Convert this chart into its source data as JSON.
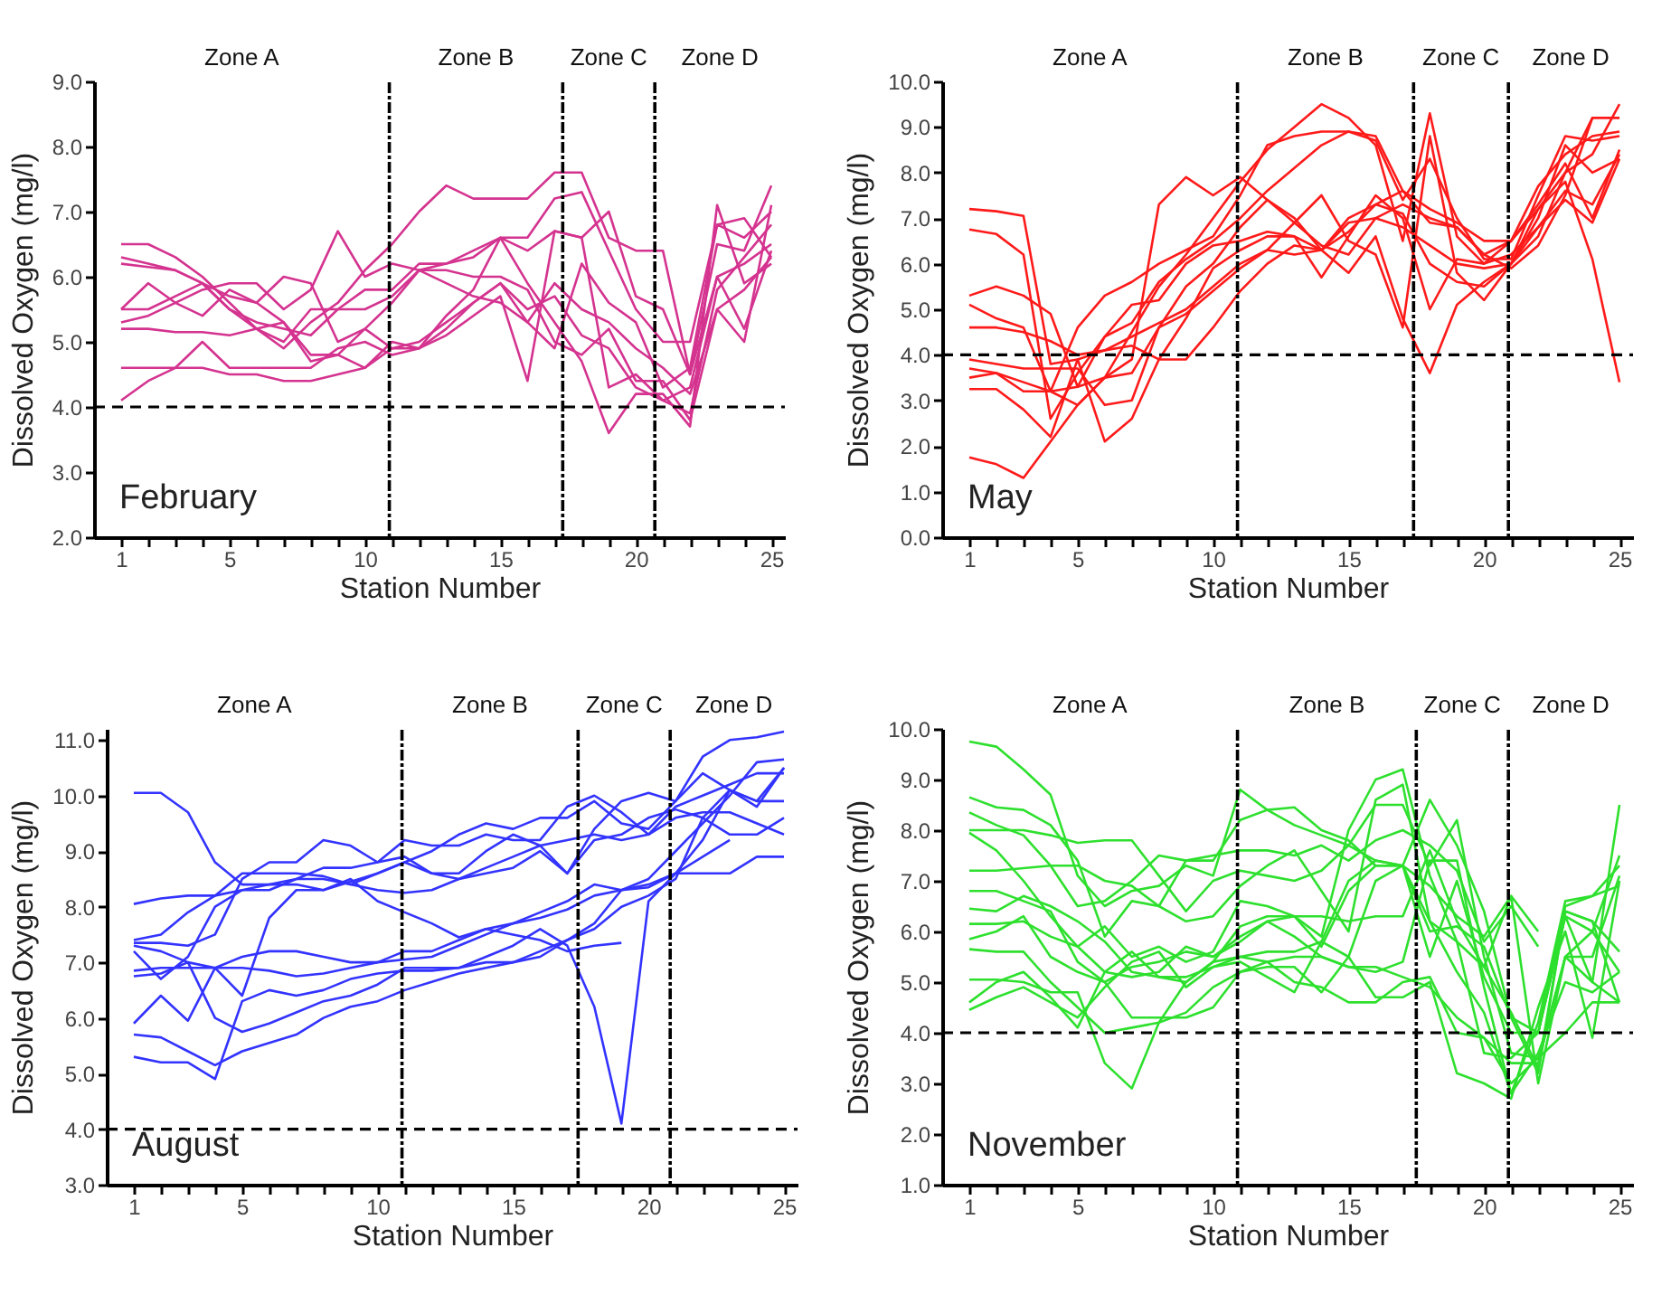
{
  "chart_data": [
    {
      "type": "line",
      "xlabel": "Station Number",
      "ylabel": "Dissolved Oxygen (mg/l)",
      "annotations": [
        "Zone A",
        "Zone B",
        "Zone C",
        "Zone D",
        "February"
      ],
      "x": [
        1,
        2,
        3,
        4,
        5,
        6,
        7,
        8,
        9,
        10,
        11,
        12,
        13,
        14,
        15,
        16,
        17,
        18,
        19,
        20,
        21,
        22,
        23,
        24,
        25
      ],
      "xlim": [
        0,
        25.5
      ],
      "xticks": [
        1,
        {
          "value": 2,
          "label": null
        },
        {
          "value": 3,
          "label": null
        },
        {
          "value": 4,
          "label": null
        },
        5,
        {
          "value": 6,
          "label": null
        },
        {
          "value": 7,
          "label": null
        },
        {
          "value": 8,
          "label": null
        },
        {
          "value": 9,
          "label": null
        },
        10,
        {
          "value": 11,
          "label": null
        },
        {
          "value": 12,
          "label": null
        },
        {
          "value": 13,
          "label": null
        },
        {
          "value": 14,
          "label": null
        },
        15,
        {
          "value": 16,
          "label": null
        },
        {
          "value": 17,
          "label": null
        },
        {
          "value": 18,
          "label": null
        },
        {
          "value": 19,
          "label": null
        },
        20,
        {
          "value": 21,
          "label": null
        },
        {
          "value": 22,
          "label": null
        },
        {
          "value": 23,
          "label": null
        },
        {
          "value": 24,
          "label": null
        },
        25
      ],
      "ylim": [
        2,
        9
      ],
      "yticks": [
        {
          "value": 2,
          "label": "2.0"
        },
        {
          "value": 3,
          "label": "3.0"
        },
        {
          "value": 4,
          "label": "4.0"
        },
        {
          "value": 5,
          "label": "5.0"
        },
        {
          "value": 6,
          "label": "6.0"
        },
        {
          "value": 7,
          "label": "7.0"
        },
        {
          "value": 8,
          "label": "8.0"
        },
        {
          "value": 9,
          "label": "9.0"
        }
      ],
      "ref_lines": [
        {
          "axis": "y",
          "value": 4,
          "color": "#000000",
          "line_style": "dashed"
        },
        {
          "axis": "x",
          "value": 10.9,
          "color": "#000000",
          "line_style": "dotted"
        },
        {
          "axis": "x",
          "value": 17.3,
          "color": "#000000",
          "line_style": "dotted"
        },
        {
          "axis": "x",
          "value": 20.7,
          "color": "#000000",
          "line_style": "dotted"
        }
      ],
      "series": [
        {
          "color": "#d4338f",
          "values": [
            6.5,
            6.5,
            6.3,
            6.0,
            5.6,
            5.2,
            4.9,
            5.3,
            5.6,
            6.1,
            6.5,
            7.0,
            7.4,
            7.2,
            7.2,
            7.2,
            7.6,
            7.6,
            6.6,
            6.4,
            6.4,
            4.5,
            6.5,
            6.4,
            7.4
          ]
        },
        {
          "color": "#d4338f",
          "values": [
            6.3,
            6.2,
            6.1,
            5.9,
            5.5,
            5.3,
            5.2,
            5.1,
            5.5,
            5.8,
            5.8,
            6.2,
            6.2,
            6.3,
            6.6,
            6.6,
            7.2,
            7.3,
            6.4,
            5.5,
            5.0,
            5.0,
            6.8,
            6.6,
            7.0
          ]
        },
        {
          "color": "#d4338f",
          "values": [
            6.2,
            6.15,
            6.1,
            5.9,
            5.7,
            5.6,
            5.3,
            4.8,
            4.8,
            5.2,
            5.6,
            6.1,
            6.1,
            6.0,
            6.0,
            5.8,
            5.0,
            4.8,
            5.2,
            4.4,
            4.4,
            3.8,
            5.5,
            5.0,
            7.1
          ]
        },
        {
          "color": "#d4338f",
          "values": [
            5.5,
            5.9,
            5.6,
            5.8,
            5.9,
            5.9,
            5.5,
            5.8,
            6.7,
            6.0,
            6.2,
            6.1,
            5.9,
            5.7,
            5.6,
            5.3,
            4.9,
            6.2,
            5.6,
            5.3,
            4.3,
            4.6,
            6.8,
            6.9,
            6.3
          ]
        },
        {
          "color": "#d4338f",
          "values": [
            5.5,
            5.5,
            5.7,
            5.9,
            5.5,
            5.2,
            5.0,
            5.5,
            5.5,
            5.5,
            5.7,
            6.1,
            6.2,
            6.4,
            6.6,
            6.4,
            6.7,
            6.6,
            7.0,
            5.7,
            5.5,
            4.5,
            6.0,
            6.2,
            6.5
          ]
        },
        {
          "color": "#d4338f",
          "values": [
            5.3,
            5.4,
            5.6,
            5.4,
            5.8,
            5.6,
            6.0,
            5.9,
            5.0,
            5.2,
            4.9,
            5.0,
            5.3,
            5.6,
            5.9,
            5.3,
            5.9,
            5.5,
            5.3,
            4.9,
            4.6,
            4.2,
            5.5,
            5.8,
            6.3
          ]
        },
        {
          "color": "#d4338f",
          "values": [
            5.2,
            5.2,
            5.15,
            5.15,
            5.1,
            5.2,
            5.3,
            4.7,
            4.8,
            4.6,
            5.0,
            4.9,
            5.2,
            5.6,
            5.9,
            5.5,
            5.7,
            5.1,
            4.9,
            4.3,
            4.1,
            4.3,
            6.0,
            5.2,
            6.4
          ]
        },
        {
          "color": "#d4338f",
          "values": [
            4.6,
            4.6,
            4.6,
            4.6,
            4.5,
            4.5,
            4.4,
            4.4,
            4.5,
            4.6,
            4.9,
            4.9,
            5.1,
            5.4,
            5.7,
            4.4,
            6.7,
            6.6,
            4.3,
            4.5,
            4.1,
            3.9,
            5.8,
            6.3,
            6.8
          ]
        },
        {
          "color": "#d4338f",
          "values": [
            4.1,
            4.4,
            4.6,
            5.0,
            4.6,
            4.6,
            4.6,
            4.6,
            4.9,
            5.0,
            4.8,
            4.9,
            5.4,
            5.8,
            6.6,
            5.9,
            5.3,
            4.7,
            3.6,
            4.2,
            4.2,
            3.7,
            7.1,
            5.9,
            6.2
          ]
        }
      ]
    },
    {
      "type": "line",
      "xlabel": "Station Number",
      "ylabel": "Dissolved Oxygen (mg/l)",
      "annotations": [
        "Zone A",
        "Zone B",
        "Zone C",
        "Zone D",
        "May"
      ],
      "x": [
        1,
        2,
        3,
        4,
        5,
        6,
        7,
        8,
        9,
        10,
        11,
        12,
        13,
        14,
        15,
        16,
        17,
        18,
        19,
        20,
        21,
        22,
        23,
        24,
        25
      ],
      "xlim": [
        0,
        25.5
      ],
      "xticks": [
        1,
        {
          "value": 2,
          "label": null
        },
        {
          "value": 3,
          "label": null
        },
        {
          "value": 4,
          "label": null
        },
        5,
        {
          "value": 6,
          "label": null
        },
        {
          "value": 7,
          "label": null
        },
        {
          "value": 8,
          "label": null
        },
        {
          "value": 9,
          "label": null
        },
        10,
        {
          "value": 11,
          "label": null
        },
        {
          "value": 12,
          "label": null
        },
        {
          "value": 13,
          "label": null
        },
        {
          "value": 14,
          "label": null
        },
        15,
        {
          "value": 16,
          "label": null
        },
        {
          "value": 17,
          "label": null
        },
        {
          "value": 18,
          "label": null
        },
        {
          "value": 19,
          "label": null
        },
        20,
        {
          "value": 21,
          "label": null
        },
        {
          "value": 22,
          "label": null
        },
        {
          "value": 23,
          "label": null
        },
        {
          "value": 24,
          "label": null
        },
        25
      ],
      "ylim": [
        0,
        10
      ],
      "yticks": [
        {
          "value": 0,
          "label": "0.0"
        },
        {
          "value": 1,
          "label": "1.0"
        },
        {
          "value": 2,
          "label": "2.0"
        },
        {
          "value": 3,
          "label": "3.0"
        },
        {
          "value": 4,
          "label": "4.0"
        },
        {
          "value": 5,
          "label": "5.0"
        },
        {
          "value": 6,
          "label": "6.0"
        },
        {
          "value": 7,
          "label": "7.0"
        },
        {
          "value": 8,
          "label": "8.0"
        },
        {
          "value": 9,
          "label": "9.0"
        },
        {
          "value": 10,
          "label": "10.0"
        }
      ],
      "ref_lines": [
        {
          "axis": "y",
          "value": 4,
          "color": "#000000",
          "line_style": "dashed"
        },
        {
          "axis": "x",
          "value": 10.9,
          "color": "#000000",
          "line_style": "dotted"
        },
        {
          "axis": "x",
          "value": 17.4,
          "color": "#000000",
          "line_style": "dotted"
        },
        {
          "axis": "x",
          "value": 20.9,
          "color": "#000000",
          "line_style": "dotted"
        }
      ],
      "series": [
        {
          "color": "#ff1a1a",
          "values": [
            7.2,
            7.15,
            7.05,
            3.8,
            3.9,
            4.1,
            4.2,
            3.9,
            3.9,
            4.6,
            5.4,
            6.0,
            6.4,
            6.3,
            7.0,
            7.3,
            7.6,
            7.2,
            6.9,
            6.5,
            6.5,
            7.2,
            7.8,
            6.1,
            3.4
          ]
        },
        {
          "color": "#ff1a1a",
          "values": [
            6.75,
            6.65,
            6.2,
            2.6,
            3.6,
            4.4,
            4.7,
            5.6,
            6.1,
            6.5,
            7.0,
            7.6,
            8.1,
            8.6,
            8.9,
            8.8,
            7.6,
            6.9,
            6.8,
            6.2,
            5.9,
            6.4,
            7.5,
            9.2,
            9.2
          ]
        },
        {
          "color": "#ff1a1a",
          "values": [
            5.3,
            5.5,
            5.3,
            4.9,
            3.3,
            4.4,
            5.1,
            5.2,
            6.0,
            6.4,
            6.5,
            6.7,
            6.6,
            6.3,
            6.9,
            7.0,
            6.8,
            6.4,
            6.0,
            5.9,
            6.0,
            6.6,
            8.0,
            8.4,
            9.5
          ]
        },
        {
          "color": "#ff1a1a",
          "values": [
            5.1,
            4.8,
            4.6,
            3.2,
            4.6,
            5.3,
            5.6,
            6.0,
            6.3,
            6.6,
            7.5,
            8.6,
            8.8,
            8.9,
            8.9,
            8.7,
            7.4,
            8.3,
            7.0,
            6.1,
            6.1,
            7.5,
            8.8,
            8.7,
            8.8
          ]
        },
        {
          "color": "#ff1a1a",
          "values": [
            4.6,
            4.6,
            4.5,
            4.3,
            4.0,
            4.1,
            4.4,
            4.7,
            5.0,
            5.5,
            6.0,
            6.3,
            6.2,
            6.3,
            6.7,
            7.3,
            7.1,
            6.0,
            5.6,
            5.5,
            6.0,
            6.8,
            7.6,
            7.3,
            8.4
          ]
        },
        {
          "color": "#ff1a1a",
          "values": [
            3.9,
            3.8,
            3.7,
            3.7,
            3.7,
            2.9,
            3.0,
            4.6,
            5.5,
            6.0,
            6.8,
            7.4,
            6.9,
            6.4,
            6.2,
            7.0,
            7.3,
            7.0,
            6.8,
            6.2,
            6.5,
            7.3,
            8.2,
            7.0,
            8.5
          ]
        },
        {
          "color": "#ff1a1a",
          "values": [
            3.5,
            3.6,
            3.2,
            3.2,
            3.3,
            3.5,
            3.6,
            4.6,
            4.9,
            5.4,
            5.9,
            6.3,
            6.9,
            7.5,
            6.5,
            6.2,
            4.6,
            8.8,
            5.8,
            5.2,
            6.0,
            7.0,
            8.6,
            8.0,
            8.3
          ]
        },
        {
          "color": "#ff1a1a",
          "values": [
            3.25,
            3.25,
            2.8,
            2.2,
            3.9,
            2.1,
            2.6,
            3.9,
            4.8,
            5.9,
            6.3,
            6.6,
            6.6,
            5.7,
            6.6,
            7.5,
            7.0,
            5.0,
            6.1,
            6.0,
            6.2,
            6.8,
            7.4,
            6.9,
            8.3
          ]
        },
        {
          "color": "#ff1a1a",
          "values": [
            1.75,
            1.6,
            1.3,
            2.1,
            2.9,
            3.5,
            3.9,
            7.3,
            7.9,
            7.5,
            7.9,
            7.4,
            7.0,
            6.3,
            5.8,
            6.6,
            4.8,
            3.6,
            5.1,
            5.6,
            6.0,
            7.2,
            8.0,
            9.2,
            9.2
          ]
        },
        {
          "color": "#ff1a1a",
          "values": [
            3.7,
            3.6,
            3.4,
            3.2,
            2.9,
            3.5,
            4.5,
            5.5,
            6.2,
            7.0,
            7.8,
            8.5,
            9.0,
            9.5,
            9.2,
            8.6,
            6.5,
            9.3,
            6.6,
            6.0,
            6.5,
            7.7,
            8.4,
            8.8,
            8.9
          ]
        }
      ]
    },
    {
      "type": "line",
      "xlabel": "Station Number",
      "ylabel": "Dissolved Oxygen (mg/l)",
      "annotations": [
        "Zone A",
        "Zone B",
        "Zone C",
        "Zone D",
        "August"
      ],
      "x": [
        1,
        2,
        3,
        4,
        5,
        6,
        7,
        8,
        9,
        10,
        11,
        12,
        13,
        14,
        15,
        16,
        17,
        18,
        19,
        20,
        21,
        22,
        23,
        24,
        25
      ],
      "xlim": [
        0,
        25.5
      ],
      "xticks": [
        1,
        {
          "value": 2,
          "label": null
        },
        {
          "value": 3,
          "label": null
        },
        {
          "value": 4,
          "label": null
        },
        5,
        {
          "value": 6,
          "label": null
        },
        {
          "value": 7,
          "label": null
        },
        {
          "value": 8,
          "label": null
        },
        {
          "value": 9,
          "label": null
        },
        10,
        {
          "value": 11,
          "label": null
        },
        {
          "value": 12,
          "label": null
        },
        {
          "value": 13,
          "label": null
        },
        {
          "value": 14,
          "label": null
        },
        15,
        {
          "value": 16,
          "label": null
        },
        {
          "value": 17,
          "label": null
        },
        {
          "value": 18,
          "label": null
        },
        {
          "value": 19,
          "label": null
        },
        20,
        {
          "value": 21,
          "label": null
        },
        {
          "value": 22,
          "label": null
        },
        {
          "value": 23,
          "label": null
        },
        {
          "value": 24,
          "label": null
        },
        25
      ],
      "ylim": [
        3,
        11.2
      ],
      "yticks": [
        {
          "value": 3,
          "label": "3.0"
        },
        {
          "value": 4,
          "label": "4.0"
        },
        {
          "value": 5,
          "label": "5.0"
        },
        {
          "value": 6,
          "label": "6.0"
        },
        {
          "value": 7,
          "label": "7.0"
        },
        {
          "value": 8,
          "label": "8.0"
        },
        {
          "value": 9,
          "label": "9.0"
        },
        {
          "value": 10,
          "label": "10.0"
        },
        {
          "value": 11,
          "label": "11.0"
        }
      ],
      "ref_lines": [
        {
          "axis": "y",
          "value": 4,
          "color": "#000000",
          "line_style": "dashed"
        },
        {
          "axis": "x",
          "value": 10.9,
          "color": "#000000",
          "line_style": "dotted"
        },
        {
          "axis": "x",
          "value": 17.4,
          "color": "#000000",
          "line_style": "dotted"
        },
        {
          "axis": "x",
          "value": 20.8,
          "color": "#000000",
          "line_style": "dotted"
        }
      ],
      "series": [
        {
          "color": "#3333ff",
          "values": [
            10.05,
            10.05,
            9.7,
            8.8,
            8.4,
            8.4,
            8.4,
            8.3,
            8.5,
            8.1,
            7.9,
            7.7,
            7.45,
            7.6,
            7.5,
            7.4,
            7.2,
            7.3,
            7.35,
            null,
            null,
            null,
            null,
            null,
            null
          ]
        },
        {
          "color": "#3333ff",
          "values": [
            8.05,
            8.15,
            8.2,
            8.2,
            8.3,
            8.4,
            8.5,
            8.5,
            8.4,
            8.3,
            8.25,
            8.3,
            8.5,
            8.7,
            8.9,
            9.1,
            9.2,
            9.3,
            9.2,
            9.3,
            9.6,
            9.7,
            9.7,
            9.5,
            9.3
          ]
        },
        {
          "color": "#3333ff",
          "values": [
            7.4,
            7.5,
            7.9,
            8.2,
            8.6,
            8.6,
            8.6,
            8.55,
            8.4,
            8.6,
            8.8,
            9.0,
            9.3,
            9.5,
            9.4,
            9.6,
            9.6,
            9.9,
            9.5,
            9.4,
            9.9,
            10.4,
            10.1,
            9.9,
            9.9
          ]
        },
        {
          "color": "#3333ff",
          "values": [
            7.35,
            7.35,
            7.3,
            7.5,
            8.5,
            8.8,
            8.8,
            9.2,
            9.1,
            8.8,
            9.2,
            9.1,
            9.1,
            9.3,
            9.2,
            9.2,
            9.8,
            10.0,
            9.7,
            9.3,
            9.8,
            10.0,
            10.2,
            10.4,
            10.4
          ]
        },
        {
          "color": "#3333ff",
          "values": [
            7.2,
            6.7,
            7.1,
            8.0,
            8.3,
            8.3,
            8.5,
            8.7,
            8.7,
            8.8,
            8.9,
            8.6,
            8.5,
            8.6,
            8.7,
            9.0,
            8.6,
            9.4,
            9.9,
            10.05,
            9.9,
            10.7,
            11.0,
            11.05,
            11.15
          ]
        },
        {
          "color": "#3333ff",
          "values": [
            6.85,
            6.9,
            6.9,
            6.9,
            6.9,
            6.85,
            6.75,
            6.8,
            6.9,
            7.0,
            7.05,
            7.1,
            7.3,
            7.5,
            7.7,
            7.8,
            7.95,
            8.2,
            8.3,
            8.4,
            8.6,
            8.6,
            8.6,
            8.9,
            8.9
          ]
        },
        {
          "color": "#3333ff",
          "values": [
            7.3,
            7.2,
            7.0,
            6.9,
            6.4,
            7.8,
            8.3,
            8.3,
            8.45,
            8.6,
            8.8,
            8.6,
            8.6,
            9.0,
            9.3,
            9.1,
            8.6,
            9.2,
            9.3,
            9.6,
            9.75,
            9.6,
            9.3,
            9.3,
            9.6
          ]
        },
        {
          "color": "#3333ff",
          "values": [
            6.75,
            6.8,
            7.0,
            6.0,
            5.75,
            5.9,
            6.1,
            6.3,
            6.4,
            6.6,
            6.9,
            6.9,
            6.9,
            7.1,
            7.3,
            7.6,
            7.3,
            6.2,
            4.1,
            8.1,
            8.6,
            9.2,
            10.1,
            9.8,
            10.5
          ]
        },
        {
          "color": "#3333ff",
          "values": [
            5.9,
            6.4,
            5.95,
            6.9,
            7.1,
            7.2,
            7.2,
            7.1,
            7.0,
            7.0,
            7.2,
            7.2,
            7.4,
            7.6,
            7.7,
            7.9,
            8.1,
            8.4,
            8.3,
            8.5,
            9.0,
            9.5,
            10.0,
            10.6,
            10.65
          ]
        },
        {
          "color": "#3333ff",
          "values": [
            5.7,
            5.65,
            5.4,
            5.15,
            5.4,
            5.55,
            5.7,
            6.0,
            6.2,
            6.3,
            6.5,
            6.65,
            6.8,
            6.9,
            7.0,
            7.1,
            7.4,
            7.7,
            8.3,
            8.35,
            8.6,
            8.9,
            9.2,
            null,
            null
          ]
        },
        {
          "color": "#3333ff",
          "values": [
            5.3,
            5.2,
            5.2,
            4.9,
            6.3,
            6.5,
            6.4,
            6.5,
            6.7,
            6.8,
            6.85,
            6.85,
            6.9,
            7.0,
            7.0,
            7.2,
            7.4,
            7.6,
            8.0,
            8.2,
            8.5,
            9.6,
            10.1,
            9.9,
            10.5
          ]
        }
      ]
    },
    {
      "type": "line",
      "xlabel": "Station Number",
      "ylabel": "Dissolved Oxygen (mg/l)",
      "annotations": [
        "Zone A",
        "Zone B",
        "Zone C",
        "Zone D",
        "November"
      ],
      "x": [
        1,
        2,
        3,
        4,
        5,
        6,
        7,
        8,
        9,
        10,
        11,
        12,
        13,
        14,
        15,
        16,
        17,
        18,
        19,
        20,
        21,
        22,
        23,
        24,
        25
      ],
      "xlim": [
        0,
        25.5
      ],
      "xticks": [
        1,
        {
          "value": 2,
          "label": null
        },
        {
          "value": 3,
          "label": null
        },
        {
          "value": 4,
          "label": null
        },
        5,
        {
          "value": 6,
          "label": null
        },
        {
          "value": 7,
          "label": null
        },
        {
          "value": 8,
          "label": null
        },
        {
          "value": 9,
          "label": null
        },
        10,
        {
          "value": 11,
          "label": null
        },
        {
          "value": 12,
          "label": null
        },
        {
          "value": 13,
          "label": null
        },
        {
          "value": 14,
          "label": null
        },
        15,
        {
          "value": 16,
          "label": null
        },
        {
          "value": 17,
          "label": null
        },
        {
          "value": 18,
          "label": null
        },
        {
          "value": 19,
          "label": null
        },
        20,
        {
          "value": 21,
          "label": null
        },
        {
          "value": 22,
          "label": null
        },
        {
          "value": 23,
          "label": null
        },
        {
          "value": 24,
          "label": null
        },
        25
      ],
      "ylim": [
        1,
        10
      ],
      "yticks": [
        {
          "value": 1,
          "label": "1.0"
        },
        {
          "value": 2,
          "label": "2.0"
        },
        {
          "value": 3,
          "label": "3.0"
        },
        {
          "value": 4,
          "label": "4.0"
        },
        {
          "value": 5,
          "label": "5.0"
        },
        {
          "value": 6,
          "label": "6.0"
        },
        {
          "value": 7,
          "label": "7.0"
        },
        {
          "value": 8,
          "label": "8.0"
        },
        {
          "value": 9,
          "label": "9.0"
        },
        {
          "value": 10,
          "label": "10.0"
        }
      ],
      "ref_lines": [
        {
          "axis": "y",
          "value": 4,
          "color": "#000000",
          "line_style": "dashed"
        },
        {
          "axis": "x",
          "value": 10.9,
          "color": "#000000",
          "line_style": "dotted"
        },
        {
          "axis": "x",
          "value": 17.5,
          "color": "#000000",
          "line_style": "dotted"
        },
        {
          "axis": "x",
          "value": 20.9,
          "color": "#000000",
          "line_style": "dotted"
        }
      ],
      "series": [
        {
          "color": "#2ee02e",
          "values": [
            9.75,
            9.65,
            9.2,
            8.7,
            7.1,
            6.5,
            6.8,
            6.9,
            7.3,
            7.1,
            8.8,
            8.4,
            8.1,
            7.9,
            7.7,
            7.4,
            7.3,
            6.9,
            6.3,
            5.9,
            6.7,
            6.0,
            null,
            null,
            null
          ]
        },
        {
          "color": "#2ee02e",
          "values": [
            8.65,
            8.45,
            8.4,
            8.1,
            7.4,
            5.9,
            6.6,
            6.5,
            7.4,
            7.5,
            7.6,
            7.6,
            7.5,
            7.7,
            7.4,
            7.8,
            8.0,
            7.7,
            7.2,
            5.8,
            6.5,
            5.7,
            null,
            null,
            null
          ]
        },
        {
          "color": "#2ee02e",
          "values": [
            8.35,
            8.1,
            7.9,
            7.3,
            6.5,
            6.6,
            7.0,
            7.5,
            7.4,
            7.4,
            8.2,
            8.4,
            8.45,
            8.0,
            7.8,
            7.3,
            7.3,
            8.6,
            7.7,
            6.4,
            4.3,
            3.2,
            6.4,
            6.2,
            4.6
          ]
        },
        {
          "color": "#2ee02e",
          "values": [
            8.0,
            8.0,
            8.0,
            7.9,
            7.75,
            7.8,
            7.8,
            7.1,
            6.4,
            7.0,
            7.2,
            7.1,
            7.0,
            7.2,
            7.7,
            8.5,
            8.5,
            7.3,
            8.2,
            5.5,
            3.6,
            3.5,
            5.5,
            5.0,
            8.5
          ]
        },
        {
          "color": "#2ee02e",
          "values": [
            7.95,
            7.6,
            7.0,
            6.3,
            5.7,
            6.1,
            5.5,
            5.7,
            5.4,
            5.6,
            6.6,
            6.5,
            6.3,
            5.9,
            8.0,
            9.0,
            9.2,
            7.1,
            5.8,
            3.6,
            3.5,
            4.0,
            6.3,
            6.0,
            7.5
          ]
        },
        {
          "color": "#2ee02e",
          "values": [
            7.2,
            7.2,
            7.25,
            7.3,
            7.3,
            7.0,
            6.9,
            6.5,
            6.2,
            6.3,
            6.9,
            7.3,
            7.6,
            6.8,
            6.0,
            8.6,
            8.9,
            6.2,
            5.2,
            4.4,
            2.8,
            4.2,
            6.6,
            6.7,
            7.3
          ]
        },
        {
          "color": "#2ee02e",
          "values": [
            6.8,
            6.8,
            6.6,
            6.4,
            5.4,
            5.0,
            5.3,
            5.4,
            5.6,
            5.5,
            5.8,
            6.2,
            6.3,
            6.3,
            6.2,
            6.3,
            6.3,
            7.6,
            6.2,
            5.3,
            6.7,
            3.0,
            5.5,
            5.5,
            7.1
          ]
        },
        {
          "color": "#2ee02e",
          "values": [
            6.45,
            6.4,
            6.7,
            6.5,
            6.2,
            5.8,
            5.2,
            5.1,
            5.0,
            5.4,
            6.1,
            6.3,
            6.3,
            5.7,
            6.8,
            7.3,
            7.3,
            6.2,
            5.8,
            5.3,
            4.4,
            3.3,
            6.4,
            6.2,
            5.6
          ]
        },
        {
          "color": "#2ee02e",
          "values": [
            6.15,
            6.15,
            6.2,
            5.9,
            5.7,
            5.2,
            5.1,
            5.2,
            5.7,
            5.5,
            5.9,
            6.2,
            5.9,
            5.5,
            5.3,
            5.2,
            5.4,
            7.4,
            7.4,
            4.9,
            2.8,
            3.6,
            5.0,
            4.8,
            5.2
          ]
        },
        {
          "color": "#2ee02e",
          "values": [
            5.85,
            6.0,
            6.3,
            5.5,
            5.2,
            5.0,
            4.3,
            4.3,
            4.3,
            4.5,
            5.2,
            5.4,
            5.5,
            5.5,
            5.3,
            5.3,
            5.1,
            4.9,
            4.3,
            3.9,
            3.0,
            3.5,
            4.0,
            4.6,
            4.6
          ]
        },
        {
          "color": "#2ee02e",
          "values": [
            5.65,
            5.6,
            5.6,
            5.0,
            4.5,
            4.0,
            4.1,
            4.2,
            4.4,
            4.9,
            5.2,
            5.3,
            5.3,
            4.8,
            5.5,
            4.7,
            4.7,
            5.0,
            3.2,
            3.0,
            2.7,
            4.5,
            6.0,
            3.9,
            7.0
          ]
        },
        {
          "color": "#2ee02e",
          "values": [
            5.05,
            5.05,
            5.0,
            4.8,
            4.8,
            3.4,
            2.9,
            4.2,
            5.0,
            5.4,
            5.5,
            5.6,
            5.6,
            5.8,
            5.5,
            7.0,
            7.3,
            6.0,
            6.1,
            5.7,
            4.3,
            4.0,
            6.5,
            6.7,
            6.9
          ]
        },
        {
          "color": "#2ee02e",
          "values": [
            4.6,
            5.0,
            5.2,
            4.7,
            4.1,
            5.2,
            5.6,
            5.1,
            5.1,
            5.3,
            5.5,
            5.4,
            5.0,
            4.9,
            4.6,
            4.6,
            5.0,
            5.1,
            4.0,
            3.9,
            3.4,
            3.4,
            5.5,
            6.0,
            5.2
          ]
        },
        {
          "color": "#2ee02e",
          "values": [
            4.45,
            4.7,
            4.9,
            4.6,
            4.3,
            4.9,
            5.4,
            5.6,
            4.9,
            5.3,
            5.4,
            5.1,
            4.8,
            5.8,
            7.0,
            7.4,
            7.3,
            5.5,
            7.0,
            5.1,
            4.0,
            4.0,
            6.3,
            5.0,
            4.6
          ]
        }
      ]
    }
  ]
}
